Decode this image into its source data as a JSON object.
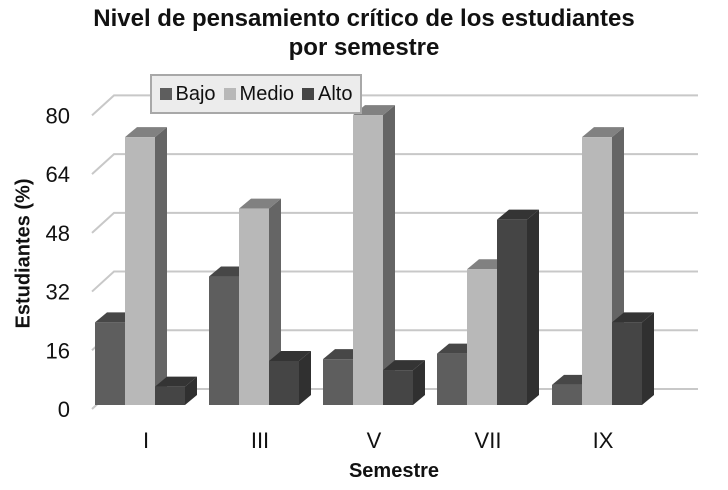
{
  "chart_data": {
    "type": "bar",
    "title": "Nivel de pensamiento crítico de los estudiantes por semestre",
    "title_lines": [
      "Nivel de pensamiento crítico de los estudiantes",
      "por semestre"
    ],
    "xlabel": "Semestre",
    "ylabel": "Estudiantes (%)",
    "categories": [
      "I",
      "III",
      "V",
      "VII",
      "IX"
    ],
    "series": [
      {
        "name": "Bajo",
        "values": [
          22.5,
          35,
          12.5,
          14,
          5.5
        ],
        "color": "#5e5e5e"
      },
      {
        "name": "Medio",
        "values": [
          73,
          53.5,
          79,
          37,
          73
        ],
        "color": "#b8b8b8"
      },
      {
        "name": "Alto",
        "values": [
          5,
          12,
          9.5,
          50.5,
          22.5
        ],
        "color": "#454545"
      }
    ],
    "yticks": [
      0,
      16,
      32,
      48,
      64,
      80
    ],
    "ylim": [
      0,
      80
    ],
    "grid": true,
    "legend_position": "top",
    "style": "3d-clustered-column"
  }
}
